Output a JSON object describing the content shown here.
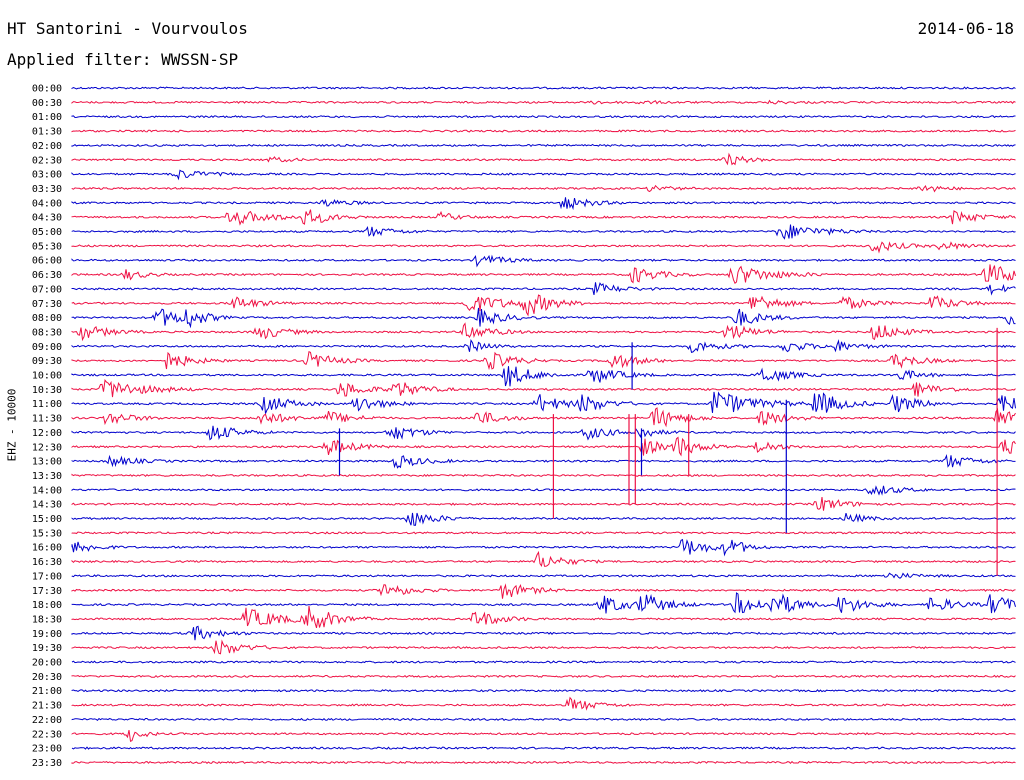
{
  "header": {
    "title": "HT Santorini - Vourvoulos",
    "date": "2014-06-18",
    "filter": "Applied filter: WWSSN-SP"
  },
  "channel_label": "EHZ - 10000",
  "colors": {
    "blue": "#0000cc",
    "red": "#ee1144"
  },
  "chart_data": {
    "type": "line",
    "title": "HT Santorini - Vourvoulos",
    "ylabel": "EHZ - 10000",
    "x_unit": "minutes",
    "xlim": [
      0,
      30
    ],
    "series_colors_alternate": [
      "blue",
      "red"
    ],
    "rows": [
      {
        "label": "00:00",
        "color": "blue",
        "bursts": []
      },
      {
        "label": "00:30",
        "color": "red",
        "bursts": [
          [
            16.6,
            1.5,
            0.15
          ],
          [
            18.0,
            2,
            0.15
          ],
          [
            22.2,
            2,
            0.15
          ]
        ]
      },
      {
        "label": "01:00",
        "color": "blue",
        "bursts": []
      },
      {
        "label": "01:30",
        "color": "red",
        "bursts": []
      },
      {
        "label": "02:00",
        "color": "blue",
        "bursts": []
      },
      {
        "label": "02:30",
        "color": "red",
        "bursts": [
          [
            6.3,
            1.5,
            0.3
          ],
          [
            20.8,
            1.5,
            0.7
          ]
        ]
      },
      {
        "label": "03:00",
        "color": "blue",
        "bursts": [
          [
            3.3,
            2,
            0.6
          ]
        ]
      },
      {
        "label": "03:30",
        "color": "red",
        "bursts": [
          [
            18.4,
            1.5,
            0.4
          ],
          [
            27.0,
            1.5,
            0.5
          ]
        ]
      },
      {
        "label": "04:00",
        "color": "blue",
        "bursts": [
          [
            8.0,
            2,
            0.4
          ],
          [
            15.6,
            2,
            0.8
          ]
        ]
      },
      {
        "label": "04:30",
        "color": "red",
        "bursts": [
          [
            5.0,
            3,
            1.0
          ],
          [
            7.4,
            2,
            0.9
          ],
          [
            11.7,
            1.5,
            0.5
          ],
          [
            28.0,
            2,
            0.8
          ]
        ]
      },
      {
        "label": "05:00",
        "color": "blue",
        "bursts": [
          [
            9.4,
            2,
            0.6
          ],
          [
            22.5,
            3,
            1.0
          ]
        ]
      },
      {
        "label": "05:30",
        "color": "red",
        "bursts": [
          [
            25.4,
            2,
            0.8
          ],
          [
            27.6,
            2,
            0.5
          ]
        ]
      },
      {
        "label": "06:00",
        "color": "blue",
        "bursts": [
          [
            12.9,
            2,
            0.7
          ]
        ]
      },
      {
        "label": "06:30",
        "color": "red",
        "bursts": [
          [
            1.7,
            1.5,
            0.6
          ],
          [
            17.8,
            2,
            1.0
          ],
          [
            21.0,
            3,
            1.2
          ],
          [
            29.0,
            3,
            1.3
          ]
        ]
      },
      {
        "label": "07:00",
        "color": "blue",
        "bursts": [
          [
            16.6,
            2,
            0.7
          ],
          [
            29.2,
            1.5,
            0.6
          ]
        ]
      },
      {
        "label": "07:30",
        "color": "red",
        "bursts": [
          [
            5.1,
            2,
            0.8
          ],
          [
            12.5,
            3,
            1.2
          ],
          [
            14.4,
            2,
            1.4
          ],
          [
            21.6,
            2,
            1.2
          ],
          [
            24.5,
            2,
            0.8
          ],
          [
            27.3,
            2,
            0.9
          ]
        ]
      },
      {
        "label": "08:00",
        "color": "blue",
        "bursts": [
          [
            2.7,
            2,
            1.2
          ],
          [
            3.6,
            1.5,
            1.0
          ],
          [
            12.9,
            2,
            1.0
          ],
          [
            21.1,
            2,
            1.1
          ],
          [
            29.8,
            2,
            1.2
          ]
        ]
      },
      {
        "label": "08:30",
        "color": "red",
        "bursts": [
          [
            0.3,
            2,
            0.9
          ],
          [
            5.9,
            2,
            0.9
          ],
          [
            12.5,
            2,
            1.0
          ],
          [
            20.8,
            2,
            1.0
          ],
          [
            25.5,
            2,
            1.1
          ]
        ]
      },
      {
        "label": "09:00",
        "color": "blue",
        "bursts": [
          [
            12.6,
            1.5,
            0.7
          ],
          [
            19.7,
            2,
            0.7
          ],
          [
            22.6,
            2,
            0.7
          ],
          [
            24.2,
            2,
            0.6
          ]
        ]
      },
      {
        "label": "09:30",
        "color": "red",
        "bursts": [
          [
            3.0,
            2,
            1.0
          ],
          [
            7.5,
            2,
            1.0
          ],
          [
            13.2,
            2,
            1.1
          ],
          [
            17.1,
            2,
            1.0
          ],
          [
            26.1,
            2,
            0.9
          ]
        ]
      },
      {
        "label": "10:00",
        "color": "blue",
        "bursts": [
          [
            13.8,
            2,
            1.4
          ],
          [
            16.5,
            2,
            1.1
          ],
          [
            21.9,
            2,
            1.0
          ],
          [
            26.3,
            1.5,
            0.7
          ]
        ]
      },
      {
        "label": "10:30",
        "color": "red",
        "bursts": [
          [
            1.0,
            3,
            1.2
          ],
          [
            8.5,
            2,
            1.0
          ],
          [
            10.3,
            2,
            1.0
          ],
          [
            26.8,
            2,
            0.8
          ]
        ]
      },
      {
        "label": "11:00",
        "color": "blue",
        "bursts": [
          [
            6.1,
            2,
            1.1
          ],
          [
            9.0,
            2,
            1.0
          ],
          [
            14.8,
            2,
            1.1
          ],
          [
            16.2,
            2,
            1.0
          ],
          [
            20.4,
            3,
            1.6
          ],
          [
            23.6,
            2,
            1.6
          ],
          [
            26.1,
            2,
            1.1
          ],
          [
            29.5,
            2,
            1.2
          ]
        ]
      },
      {
        "label": "11:30",
        "color": "red",
        "bursts": [
          [
            1.1,
            2,
            0.8
          ],
          [
            6.0,
            2,
            0.8
          ],
          [
            8.1,
            2,
            0.8
          ],
          [
            12.8,
            2,
            0.9
          ],
          [
            18.5,
            2,
            1.3
          ],
          [
            21.9,
            2,
            0.9
          ],
          [
            29.4,
            2,
            1.2
          ]
        ]
      },
      {
        "label": "12:00",
        "color": "blue",
        "bursts": [
          [
            4.4,
            2,
            1.0
          ],
          [
            10.1,
            2,
            1.0
          ],
          [
            16.3,
            2,
            0.8
          ],
          [
            18.0,
            1.5,
            0.7
          ]
        ]
      },
      {
        "label": "12:30",
        "color": "red",
        "bursts": [
          [
            8.1,
            2,
            1.0
          ],
          [
            18.1,
            1.5,
            1.1
          ],
          [
            19.2,
            2,
            1.1
          ],
          [
            21.8,
            1.5,
            0.8
          ],
          [
            29.6,
            2,
            0.9
          ]
        ]
      },
      {
        "label": "13:00",
        "color": "blue",
        "bursts": [
          [
            1.2,
            2,
            0.6
          ],
          [
            10.3,
            2,
            0.8
          ],
          [
            27.8,
            2,
            0.8
          ]
        ]
      },
      {
        "label": "13:30",
        "color": "red",
        "bursts": []
      },
      {
        "label": "14:00",
        "color": "blue",
        "bursts": [
          [
            25.4,
            2,
            0.7
          ]
        ]
      },
      {
        "label": "14:30",
        "color": "red",
        "bursts": [
          [
            23.7,
            2,
            0.9
          ]
        ]
      },
      {
        "label": "15:00",
        "color": "blue",
        "bursts": [
          [
            10.7,
            2,
            1.0
          ],
          [
            24.6,
            1.5,
            0.6
          ]
        ]
      },
      {
        "label": "15:30",
        "color": "red",
        "bursts": []
      },
      {
        "label": "16:00",
        "color": "blue",
        "bursts": [
          [
            0.1,
            1.5,
            0.8
          ],
          [
            19.4,
            2,
            1.1
          ],
          [
            20.8,
            1.5,
            1.0
          ]
        ]
      },
      {
        "label": "16:30",
        "color": "red",
        "bursts": [
          [
            14.8,
            2,
            1.0
          ]
        ]
      },
      {
        "label": "17:00",
        "color": "blue",
        "bursts": [
          [
            25.9,
            2,
            0.4
          ]
        ]
      },
      {
        "label": "17:30",
        "color": "red",
        "bursts": [
          [
            9.9,
            2,
            0.9
          ],
          [
            13.7,
            2,
            1.0
          ]
        ]
      },
      {
        "label": "18:00",
        "color": "blue",
        "bursts": [
          [
            16.8,
            2,
            1.2
          ],
          [
            18.1,
            2,
            1.2
          ],
          [
            21.1,
            2,
            1.3
          ],
          [
            22.3,
            2,
            1.3
          ],
          [
            24.4,
            2,
            1.1
          ],
          [
            27.3,
            2,
            0.9
          ],
          [
            29.2,
            2,
            1.2
          ]
        ]
      },
      {
        "label": "18:30",
        "color": "red",
        "bursts": [
          [
            5.5,
            3,
            1.2
          ],
          [
            7.5,
            2,
            1.5
          ],
          [
            12.8,
            2,
            1.0
          ]
        ]
      },
      {
        "label": "19:00",
        "color": "blue",
        "bursts": [
          [
            3.8,
            2,
            0.9
          ]
        ]
      },
      {
        "label": "19:30",
        "color": "red",
        "bursts": [
          [
            4.6,
            2,
            1.0
          ]
        ]
      },
      {
        "label": "20:00",
        "color": "blue",
        "bursts": []
      },
      {
        "label": "20:30",
        "color": "red",
        "bursts": []
      },
      {
        "label": "21:00",
        "color": "blue",
        "bursts": []
      },
      {
        "label": "21:30",
        "color": "red",
        "bursts": [
          [
            15.8,
            2,
            0.8
          ]
        ]
      },
      {
        "label": "22:00",
        "color": "blue",
        "bursts": []
      },
      {
        "label": "22:30",
        "color": "red",
        "bursts": [
          [
            1.8,
            1,
            1.0
          ]
        ]
      },
      {
        "label": "23:00",
        "color": "blue",
        "bursts": []
      },
      {
        "label": "23:30",
        "color": "red",
        "bursts": []
      }
    ],
    "spikes": [
      {
        "row": "11:30",
        "t": 15.3,
        "rows": 7
      },
      {
        "row": "11:30",
        "t": 17.7,
        "rows": 6
      },
      {
        "row": "11:30",
        "t": 17.9,
        "rows": 6
      },
      {
        "row": "12:00",
        "t": 18.1,
        "rows": 3
      },
      {
        "row": "11:30",
        "t": 19.6,
        "rows": 4
      },
      {
        "row": "11:00",
        "t": 22.7,
        "rows": 9
      },
      {
        "row": "08:30",
        "t": 29.4,
        "rows": 17
      },
      {
        "row": "12:00",
        "t": 8.5,
        "rows": 3
      },
      {
        "row": "09:00",
        "t": 17.8,
        "rows": 3
      }
    ]
  }
}
